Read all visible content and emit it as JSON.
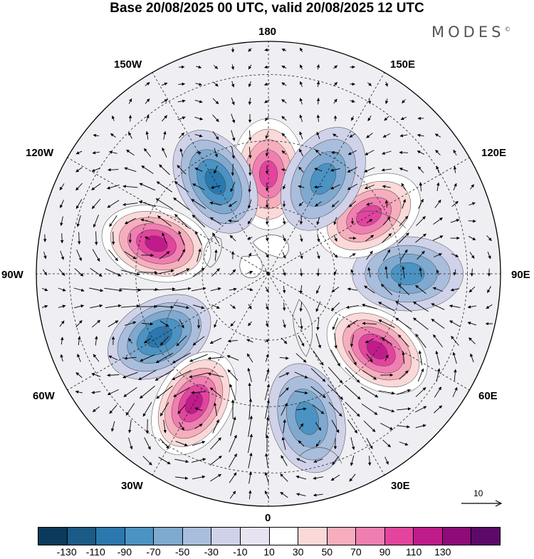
{
  "header": {
    "title": "Base 20/08/2025 00 UTC, valid 20/08/2025 12 UTC",
    "brand": "MODES",
    "brand_mark": "©"
  },
  "map": {
    "projection": "north-polar-stereographic",
    "field": "height anomaly with wind vectors",
    "longitude_labels": {
      "lon_180": "180",
      "lon_150e": "150E",
      "lon_120e": "120E",
      "lon_90e": "90E",
      "lon_60e": "60E",
      "lon_30e": "30E",
      "lon_0": "0",
      "lon_30w": "30W",
      "lon_60w": "60W",
      "lon_90w": "90W",
      "lon_120w": "120W",
      "lon_150w": "150W"
    },
    "anomaly_centers": [
      {
        "name": "pacific-high",
        "lon": 180,
        "lat": 60,
        "sign": "positive",
        "peak": 90
      },
      {
        "name": "alaska-low",
        "lon": 210,
        "lat": 58,
        "sign": "negative",
        "peak": -90
      },
      {
        "name": "canada-high",
        "lon": 255,
        "lat": 55,
        "sign": "positive",
        "peak": 110
      },
      {
        "name": "atlantic-low",
        "lon": 300,
        "lat": 52,
        "sign": "negative",
        "peak": -90
      },
      {
        "name": "north-atlantic-high",
        "lon": 330,
        "lat": 45,
        "sign": "positive",
        "peak": 110
      },
      {
        "name": "europe-low",
        "lon": 15,
        "lat": 45,
        "sign": "negative",
        "peak": -70
      },
      {
        "name": "west-siberia-high",
        "lon": 55,
        "lat": 50,
        "sign": "positive",
        "peak": 110
      },
      {
        "name": "siberia-low",
        "lon": 90,
        "lat": 48,
        "sign": "negative",
        "peak": -70
      },
      {
        "name": "east-asia-high",
        "lon": 120,
        "lat": 55,
        "sign": "positive",
        "peak": 90
      },
      {
        "name": "kamchatka-low",
        "lon": 150,
        "lat": 57,
        "sign": "negative",
        "peak": -70
      }
    ]
  },
  "reference_vector": {
    "label": "10"
  },
  "colorbar": {
    "colors": [
      "#0b3a5c",
      "#1a5b87",
      "#2a78ad",
      "#4b93c3",
      "#7fa9cf",
      "#a9bedc",
      "#cfd2e9",
      "#e7e3f2",
      "#ffffff",
      "#fbd9d9",
      "#f6aebd",
      "#f07fb1",
      "#e2449e",
      "#c01b8a",
      "#8e0b78",
      "#5c0a69"
    ],
    "tick_labels": [
      "-130",
      "-110",
      "-90",
      "-70",
      "-50",
      "-30",
      "-10",
      "10",
      "30",
      "50",
      "70",
      "90",
      "110",
      "130"
    ]
  }
}
